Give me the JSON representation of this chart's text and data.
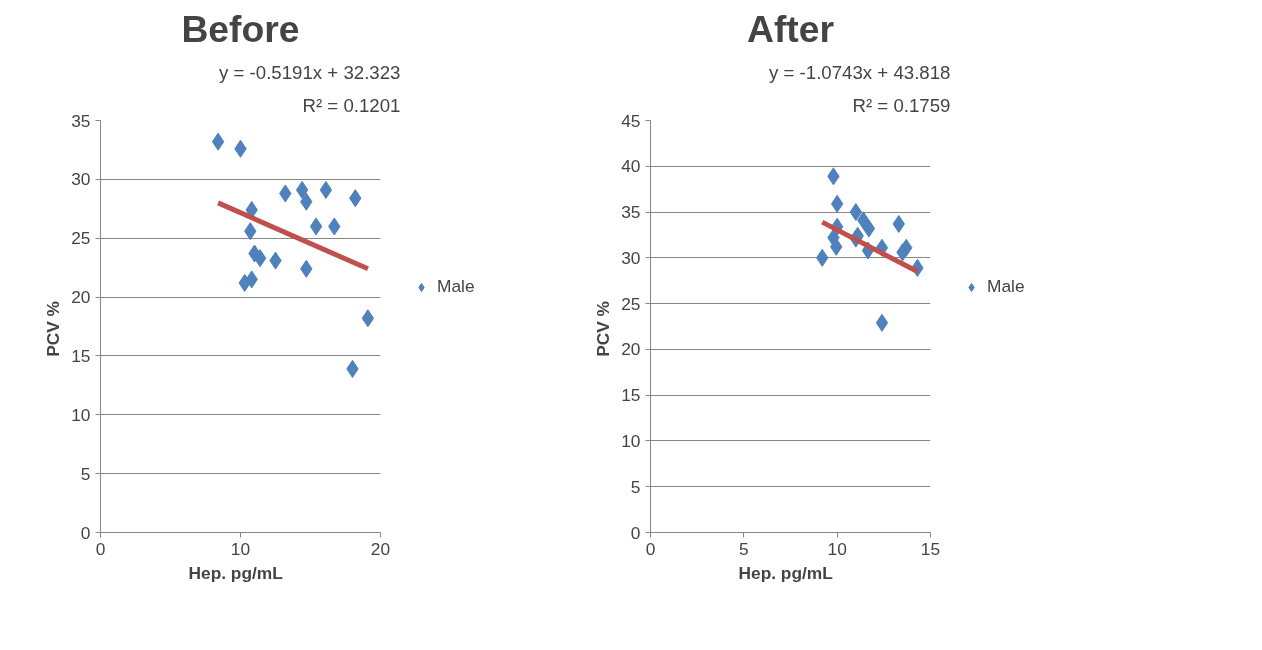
{
  "chart_data": [
    {
      "type": "scatter",
      "title": "Before",
      "xlabel": "Hep.   pg/mL",
      "ylabel": "PCV  %",
      "xlim": [
        0,
        20
      ],
      "xticks": [
        0,
        10,
        20
      ],
      "ylim": [
        0,
        35
      ],
      "yticks": [
        0,
        5,
        10,
        15,
        20,
        25,
        30,
        35
      ],
      "grid": "y",
      "legend": "right",
      "annotations": [
        "y = -0.5191x + 32.323",
        "R² = 0.1201"
      ],
      "series": [
        {
          "name": "Male",
          "color": "#4f81bd",
          "marker": "diamond",
          "x": [
            8.4,
            10.0,
            10.8,
            10.7,
            11.0,
            11.4,
            12.5,
            10.3,
            10.8,
            13.2,
            14.4,
            14.7,
            16.1,
            18.2,
            14.7,
            15.4,
            16.7,
            19.1,
            18.0
          ],
          "values": [
            33.2,
            32.6,
            27.4,
            25.6,
            23.7,
            23.3,
            23.1,
            21.2,
            21.5,
            28.8,
            29.1,
            28.1,
            29.1,
            28.4,
            22.4,
            26.0,
            26.0,
            18.2,
            13.9
          ]
        },
        {
          "type": "line",
          "color": "#c0504d",
          "x": [
            8.4,
            19.1
          ],
          "values": [
            28.0,
            22.4
          ]
        }
      ]
    },
    {
      "type": "scatter",
      "title": "After",
      "xlabel": "Hep.   pg/mL",
      "ylabel": "PCV  %",
      "xlim": [
        0,
        15
      ],
      "xticks": [
        0,
        5,
        10,
        15
      ],
      "ylim": [
        0,
        45
      ],
      "yticks": [
        0,
        5,
        10,
        15,
        20,
        25,
        30,
        35,
        40,
        45
      ],
      "grid": "y",
      "legend": "right",
      "annotations": [
        "y = -1.0743x + 43.818",
        "R² = 0.1759"
      ],
      "series": [
        {
          "name": "Male",
          "color": "#4f81bd",
          "marker": "diamond",
          "x": [
            9.8,
            10.0,
            10.0,
            9.8,
            9.95,
            9.2,
            11.0,
            11.4,
            11.7,
            11.1,
            11.0,
            11.65,
            12.4,
            13.3,
            13.7,
            13.5,
            14.3,
            12.4
          ],
          "values": [
            38.9,
            35.9,
            33.4,
            32.2,
            31.2,
            30.0,
            35.0,
            34.1,
            33.2,
            32.4,
            32.1,
            30.8,
            31.1,
            33.7,
            31.1,
            30.6,
            28.9,
            22.9
          ]
        },
        {
          "type": "line",
          "color": "#c0504d",
          "x": [
            9.2,
            14.3
          ],
          "values": [
            33.9,
            28.5
          ]
        }
      ]
    }
  ]
}
